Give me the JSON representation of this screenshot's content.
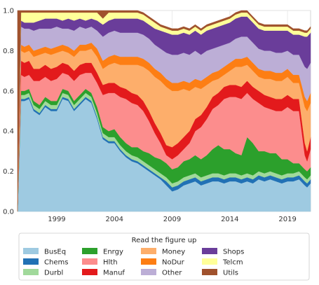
{
  "chart_data": {
    "type": "area",
    "stacked": true,
    "normalized": true,
    "title": "",
    "xlabel": "",
    "ylabel": "",
    "ylim": [
      0,
      1
    ],
    "xlim": [
      1995.6,
      2021.0
    ],
    "grid": true,
    "legend": {
      "title": "Read the figure up",
      "placement": "bottom",
      "columns": 5
    },
    "x_ticks": [
      1999,
      2004,
      2009,
      2014,
      2019
    ],
    "y_ticks": [
      0.0,
      0.2,
      0.4,
      0.6,
      0.8,
      1.0
    ],
    "x_tick_labels": [
      "1999",
      "2004",
      "2009",
      "2014",
      "2019"
    ],
    "y_tick_labels": [
      "0.0",
      "0.2",
      "0.4",
      "0.6",
      "0.8",
      "1.0"
    ],
    "x": [
      1995.6,
      1995.9,
      1996.2,
      1996.6,
      1997.0,
      1997.5,
      1998.0,
      1998.5,
      1999.0,
      1999.5,
      2000.0,
      2000.5,
      2001.0,
      2001.5,
      2002.0,
      2002.5,
      2003.0,
      2003.5,
      2004.0,
      2004.5,
      2005.0,
      2005.5,
      2006.0,
      2006.5,
      2007.0,
      2007.5,
      2008.0,
      2008.5,
      2009.0,
      2009.5,
      2010.0,
      2010.5,
      2011.0,
      2011.5,
      2012.0,
      2012.5,
      2013.0,
      2013.5,
      2014.0,
      2014.5,
      2015.0,
      2015.5,
      2016.0,
      2016.5,
      2017.0,
      2017.5,
      2018.0,
      2018.5,
      2019.0,
      2019.5,
      2020.0,
      2020.5,
      2020.7,
      2021.0
    ],
    "series": [
      {
        "name": "BusEq",
        "color": "#9ecae1",
        "values": [
          0.0,
          0.55,
          0.55,
          0.56,
          0.5,
          0.48,
          0.52,
          0.5,
          0.5,
          0.56,
          0.55,
          0.5,
          0.53,
          0.56,
          0.54,
          0.46,
          0.36,
          0.34,
          0.34,
          0.3,
          0.27,
          0.25,
          0.24,
          0.22,
          0.2,
          0.18,
          0.16,
          0.13,
          0.1,
          0.11,
          0.13,
          0.14,
          0.15,
          0.13,
          0.14,
          0.15,
          0.15,
          0.14,
          0.15,
          0.15,
          0.14,
          0.15,
          0.14,
          0.16,
          0.15,
          0.16,
          0.15,
          0.14,
          0.15,
          0.15,
          0.16,
          0.13,
          0.12,
          0.14
        ]
      },
      {
        "name": "Chems",
        "color": "#2171b5",
        "values": [
          0.0,
          0.01,
          0.01,
          0.01,
          0.01,
          0.01,
          0.01,
          0.01,
          0.01,
          0.01,
          0.01,
          0.01,
          0.01,
          0.01,
          0.01,
          0.01,
          0.01,
          0.01,
          0.01,
          0.01,
          0.01,
          0.01,
          0.01,
          0.01,
          0.01,
          0.01,
          0.01,
          0.02,
          0.02,
          0.02,
          0.02,
          0.02,
          0.02,
          0.02,
          0.02,
          0.02,
          0.02,
          0.02,
          0.02,
          0.02,
          0.02,
          0.02,
          0.02,
          0.02,
          0.02,
          0.02,
          0.02,
          0.02,
          0.02,
          0.02,
          0.02,
          0.02,
          0.02,
          0.02
        ]
      },
      {
        "name": "Durbl",
        "color": "#a1d99b",
        "values": [
          0.0,
          0.02,
          0.02,
          0.02,
          0.02,
          0.02,
          0.02,
          0.02,
          0.02,
          0.02,
          0.02,
          0.02,
          0.02,
          0.02,
          0.02,
          0.02,
          0.02,
          0.02,
          0.02,
          0.02,
          0.02,
          0.02,
          0.02,
          0.02,
          0.02,
          0.02,
          0.02,
          0.02,
          0.02,
          0.02,
          0.02,
          0.02,
          0.02,
          0.02,
          0.02,
          0.02,
          0.02,
          0.02,
          0.02,
          0.02,
          0.02,
          0.02,
          0.02,
          0.02,
          0.02,
          0.02,
          0.02,
          0.02,
          0.02,
          0.02,
          0.02,
          0.02,
          0.02,
          0.02
        ]
      },
      {
        "name": "Enrgy",
        "color": "#2ca02c",
        "values": [
          0.0,
          0.02,
          0.02,
          0.02,
          0.02,
          0.02,
          0.02,
          0.02,
          0.02,
          0.02,
          0.02,
          0.02,
          0.02,
          0.02,
          0.02,
          0.03,
          0.03,
          0.03,
          0.04,
          0.04,
          0.04,
          0.04,
          0.05,
          0.05,
          0.06,
          0.06,
          0.07,
          0.07,
          0.07,
          0.07,
          0.08,
          0.08,
          0.09,
          0.09,
          0.1,
          0.12,
          0.14,
          0.13,
          0.12,
          0.1,
          0.1,
          0.18,
          0.16,
          0.1,
          0.11,
          0.09,
          0.1,
          0.08,
          0.07,
          0.05,
          0.04,
          0.04,
          0.04,
          0.04
        ]
      },
      {
        "name": "Hlth",
        "color": "#fc8d8d",
        "values": [
          0.0,
          0.08,
          0.07,
          0.07,
          0.1,
          0.12,
          0.1,
          0.1,
          0.11,
          0.08,
          0.08,
          0.1,
          0.1,
          0.08,
          0.1,
          0.12,
          0.16,
          0.19,
          0.18,
          0.2,
          0.22,
          0.22,
          0.21,
          0.2,
          0.16,
          0.12,
          0.08,
          0.04,
          0.05,
          0.06,
          0.06,
          0.08,
          0.12,
          0.16,
          0.18,
          0.2,
          0.2,
          0.25,
          0.26,
          0.28,
          0.28,
          0.22,
          0.22,
          0.24,
          0.22,
          0.22,
          0.21,
          0.24,
          0.26,
          0.26,
          0.26,
          0.07,
          0.05,
          0.09
        ]
      },
      {
        "name": "Manuf",
        "color": "#e31a1c",
        "values": [
          0.0,
          0.07,
          0.07,
          0.07,
          0.06,
          0.06,
          0.06,
          0.06,
          0.06,
          0.05,
          0.05,
          0.05,
          0.05,
          0.05,
          0.05,
          0.05,
          0.05,
          0.05,
          0.05,
          0.05,
          0.05,
          0.05,
          0.05,
          0.05,
          0.05,
          0.05,
          0.05,
          0.05,
          0.06,
          0.06,
          0.06,
          0.06,
          0.06,
          0.06,
          0.06,
          0.06,
          0.06,
          0.06,
          0.06,
          0.06,
          0.06,
          0.06,
          0.06,
          0.06,
          0.06,
          0.06,
          0.06,
          0.06,
          0.06,
          0.06,
          0.06,
          0.06,
          0.05,
          0.06
        ]
      },
      {
        "name": "Money",
        "color": "#fdae6b",
        "values": [
          0.0,
          0.05,
          0.05,
          0.05,
          0.06,
          0.07,
          0.06,
          0.07,
          0.07,
          0.06,
          0.06,
          0.07,
          0.07,
          0.06,
          0.07,
          0.08,
          0.08,
          0.09,
          0.1,
          0.11,
          0.12,
          0.14,
          0.15,
          0.17,
          0.2,
          0.23,
          0.26,
          0.29,
          0.28,
          0.26,
          0.24,
          0.2,
          0.16,
          0.13,
          0.11,
          0.08,
          0.07,
          0.06,
          0.07,
          0.09,
          0.1,
          0.08,
          0.08,
          0.07,
          0.08,
          0.09,
          0.09,
          0.09,
          0.09,
          0.08,
          0.08,
          0.18,
          0.2,
          0.17
        ]
      },
      {
        "name": "NoDur",
        "color": "#fd7e14",
        "values": [
          0.0,
          0.03,
          0.03,
          0.03,
          0.03,
          0.03,
          0.03,
          0.03,
          0.03,
          0.03,
          0.03,
          0.03,
          0.03,
          0.03,
          0.03,
          0.04,
          0.04,
          0.04,
          0.04,
          0.04,
          0.04,
          0.04,
          0.04,
          0.04,
          0.04,
          0.04,
          0.04,
          0.04,
          0.04,
          0.04,
          0.04,
          0.04,
          0.04,
          0.04,
          0.04,
          0.04,
          0.04,
          0.04,
          0.04,
          0.04,
          0.04,
          0.04,
          0.04,
          0.04,
          0.04,
          0.04,
          0.04,
          0.04,
          0.04,
          0.04,
          0.04,
          0.05,
          0.05,
          0.05
        ]
      },
      {
        "name": "Other",
        "color": "#bcaed6",
        "values": [
          0.0,
          0.09,
          0.09,
          0.08,
          0.1,
          0.1,
          0.09,
          0.1,
          0.1,
          0.08,
          0.09,
          0.1,
          0.09,
          0.08,
          0.08,
          0.09,
          0.12,
          0.12,
          0.12,
          0.12,
          0.12,
          0.12,
          0.12,
          0.12,
          0.12,
          0.12,
          0.12,
          0.13,
          0.14,
          0.14,
          0.14,
          0.14,
          0.14,
          0.13,
          0.13,
          0.12,
          0.12,
          0.11,
          0.1,
          0.1,
          0.11,
          0.1,
          0.1,
          0.1,
          0.1,
          0.1,
          0.1,
          0.1,
          0.09,
          0.1,
          0.1,
          0.15,
          0.16,
          0.15
        ]
      },
      {
        "name": "Shops",
        "color": "#6a3d9a",
        "values": [
          0.0,
          0.03,
          0.03,
          0.03,
          0.04,
          0.04,
          0.05,
          0.05,
          0.04,
          0.04,
          0.05,
          0.05,
          0.04,
          0.04,
          0.04,
          0.05,
          0.06,
          0.06,
          0.06,
          0.07,
          0.07,
          0.07,
          0.07,
          0.07,
          0.07,
          0.08,
          0.09,
          0.1,
          0.1,
          0.1,
          0.1,
          0.1,
          0.1,
          0.1,
          0.1,
          0.1,
          0.1,
          0.1,
          0.1,
          0.1,
          0.1,
          0.1,
          0.1,
          0.1,
          0.1,
          0.1,
          0.11,
          0.11,
          0.1,
          0.1,
          0.1,
          0.15,
          0.16,
          0.15
        ]
      },
      {
        "name": "Telcm",
        "color": "#ffff99",
        "values": [
          0.0,
          0.04,
          0.05,
          0.05,
          0.05,
          0.04,
          0.03,
          0.03,
          0.03,
          0.04,
          0.03,
          0.04,
          0.03,
          0.04,
          0.03,
          0.04,
          0.03,
          0.04,
          0.03,
          0.03,
          0.03,
          0.03,
          0.03,
          0.03,
          0.03,
          0.03,
          0.02,
          0.02,
          0.02,
          0.02,
          0.02,
          0.02,
          0.02,
          0.02,
          0.02,
          0.02,
          0.02,
          0.02,
          0.02,
          0.02,
          0.02,
          0.02,
          0.02,
          0.02,
          0.02,
          0.02,
          0.02,
          0.02,
          0.02,
          0.02,
          0.02,
          0.02,
          0.02,
          0.02
        ]
      },
      {
        "name": "Utils",
        "color": "#a0522d",
        "values": [
          1.0,
          0.01,
          0.01,
          0.01,
          0.01,
          0.01,
          0.01,
          0.01,
          0.01,
          0.01,
          0.01,
          0.01,
          0.01,
          0.01,
          0.01,
          0.01,
          0.04,
          0.01,
          0.01,
          0.01,
          0.01,
          0.01,
          0.01,
          0.01,
          0.01,
          0.01,
          0.01,
          0.01,
          0.01,
          0.01,
          0.01,
          0.01,
          0.01,
          0.01,
          0.01,
          0.01,
          0.01,
          0.01,
          0.01,
          0.01,
          0.01,
          0.01,
          0.01,
          0.01,
          0.01,
          0.01,
          0.01,
          0.01,
          0.01,
          0.01,
          0.01,
          0.01,
          0.01,
          0.01
        ]
      }
    ]
  }
}
